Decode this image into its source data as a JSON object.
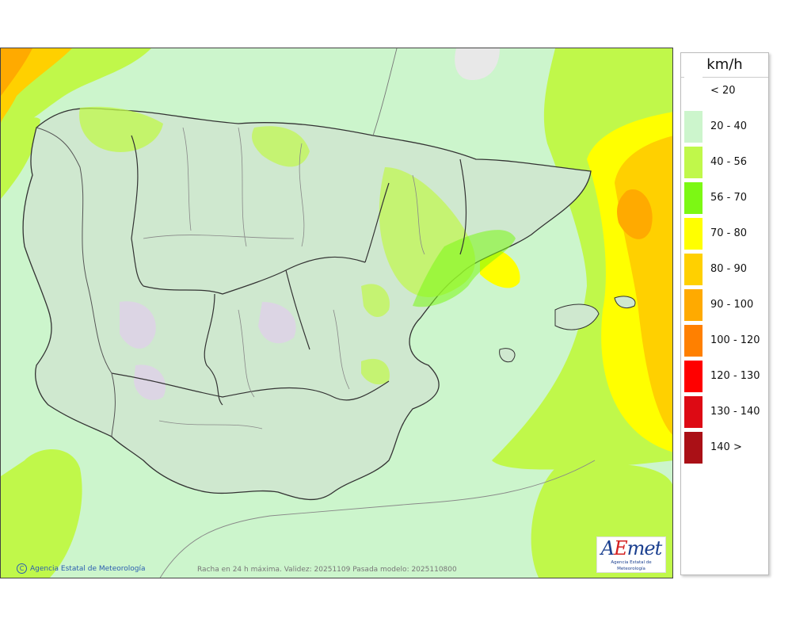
{
  "legend": {
    "unit": "km/h",
    "items": [
      {
        "label": "< 20",
        "color": "#ffffff"
      },
      {
        "label": "20 - 40",
        "color": "#ccf5cc"
      },
      {
        "label": "40 - 56",
        "color": "#c0f84a"
      },
      {
        "label": "56 - 70",
        "color": "#7cf814"
      },
      {
        "label": "70 - 80",
        "color": "#ffff00"
      },
      {
        "label": "80 - 90",
        "color": "#ffd000"
      },
      {
        "label": "90 - 100",
        "color": "#ffaa00"
      },
      {
        "label": "100 - 120",
        "color": "#ff8000"
      },
      {
        "label": "120 - 130",
        "color": "#ff0000"
      },
      {
        "label": "130 - 140",
        "color": "#dd0a14"
      },
      {
        "label": "140 >",
        "color": "#aa1016"
      }
    ]
  },
  "map": {
    "caption": "Racha en 24 h máxima. Validez: 20251109 Pasada modelo: 2025110800",
    "credit": "Agencia Estatal de Meteorología",
    "credit_symbol": "C",
    "logo": {
      "word_a": "A",
      "word_e": "E",
      "word_rest": "met",
      "sub": "Agencia Estatal de Meteorología"
    }
  },
  "colors": {
    "land": "#cfe8cf",
    "sea": "#ccf5cc",
    "border": "#333333",
    "internal_border": "#888888"
  }
}
